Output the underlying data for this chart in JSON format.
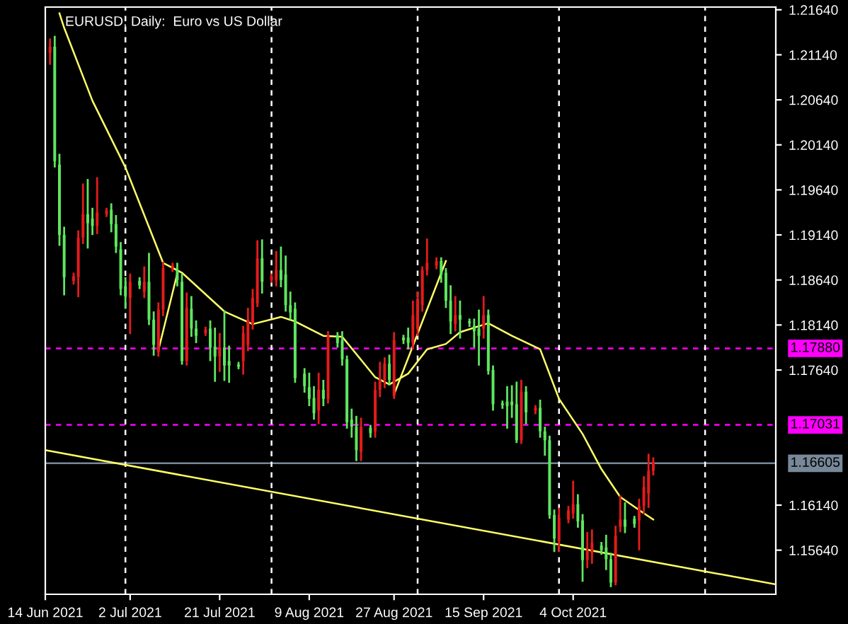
{
  "chart_data": {
    "type": "candlestick",
    "title": "EURUSD, Daily:  Euro vs US Dollar",
    "xlim": [
      "2021-06-14",
      "2021-11-16"
    ],
    "xticks": [
      {
        "value": "2021-06-14",
        "label": "14 Jun 2021"
      },
      {
        "value": "2021-07-02",
        "label": "2 Jul 2021"
      },
      {
        "value": "2021-07-21",
        "label": "21 Jul 2021"
      },
      {
        "value": "2021-08-09",
        "label": "9 Aug 2021"
      },
      {
        "value": "2021-08-27",
        "label": "27 Aug 2021"
      },
      {
        "value": "2021-09-15",
        "label": "15 Sep 2021"
      },
      {
        "value": "2021-10-04",
        "label": "4 Oct 2021"
      }
    ],
    "ylim": [
      1.1515,
      1.2167
    ],
    "yticks": [
      {
        "value": 1.1564,
        "label": "1.15640"
      },
      {
        "value": 1.1614,
        "label": "1.16140"
      },
      {
        "value": 1.1764,
        "label": "1.17640"
      },
      {
        "value": 1.1814,
        "label": "1.18140"
      },
      {
        "value": 1.1864,
        "label": "1.18640"
      },
      {
        "value": 1.1914,
        "label": "1.19140"
      },
      {
        "value": 1.1964,
        "label": "1.19640"
      },
      {
        "value": 1.2014,
        "label": "1.20140"
      },
      {
        "value": 1.2064,
        "label": "1.20640"
      },
      {
        "value": 1.2114,
        "label": "1.21140"
      },
      {
        "value": 1.2164,
        "label": "1.21640"
      }
    ],
    "x": [
      "2021-06-15",
      "2021-06-16",
      "2021-06-17",
      "2021-06-18",
      "2021-06-20",
      "2021-06-21",
      "2021-06-22",
      "2021-06-23",
      "2021-06-24",
      "2021-06-25",
      "2021-06-27",
      "2021-06-28",
      "2021-06-29",
      "2021-06-30",
      "2021-07-01",
      "2021-07-02",
      "2021-07-04",
      "2021-07-05",
      "2021-07-06",
      "2021-07-07",
      "2021-07-08",
      "2021-07-09",
      "2021-07-11",
      "2021-07-12",
      "2021-07-13",
      "2021-07-14",
      "2021-07-15",
      "2021-07-16",
      "2021-07-18",
      "2021-07-19",
      "2021-07-20",
      "2021-07-21",
      "2021-07-22",
      "2021-07-23",
      "2021-07-25",
      "2021-07-26",
      "2021-07-27",
      "2021-07-28",
      "2021-07-29",
      "2021-07-30",
      "2021-08-01",
      "2021-08-02",
      "2021-08-03",
      "2021-08-04",
      "2021-08-05",
      "2021-08-06",
      "2021-08-08",
      "2021-08-09",
      "2021-08-10",
      "2021-08-11",
      "2021-08-12",
      "2021-08-13",
      "2021-08-15",
      "2021-08-16",
      "2021-08-17",
      "2021-08-18",
      "2021-08-19",
      "2021-08-20",
      "2021-08-22",
      "2021-08-23",
      "2021-08-24",
      "2021-08-25",
      "2021-08-26",
      "2021-08-27",
      "2021-08-29",
      "2021-08-30",
      "2021-08-31",
      "2021-09-01",
      "2021-09-02",
      "2021-09-03",
      "2021-09-05",
      "2021-09-06",
      "2021-09-07",
      "2021-09-08",
      "2021-09-09",
      "2021-09-10",
      "2021-09-12",
      "2021-09-13",
      "2021-09-14",
      "2021-09-15",
      "2021-09-16",
      "2021-09-17",
      "2021-09-19",
      "2021-09-20",
      "2021-09-21",
      "2021-09-22",
      "2021-09-23",
      "2021-09-24",
      "2021-09-26",
      "2021-09-27",
      "2021-09-28",
      "2021-09-29",
      "2021-09-30",
      "2021-10-01",
      "2021-10-03",
      "2021-10-04",
      "2021-10-05",
      "2021-10-06",
      "2021-10-07",
      "2021-10-08",
      "2021-10-10",
      "2021-10-11",
      "2021-10-12",
      "2021-10-13",
      "2021-10-14",
      "2021-10-15",
      "2021-10-17",
      "2021-10-18",
      "2021-10-19",
      "2021-10-20",
      "2021-10-21"
    ],
    "ohlc": [
      [
        1.2116,
        1.2131,
        1.2104,
        1.2123
      ],
      [
        1.2123,
        1.2134,
        1.199,
        1.1996
      ],
      [
        1.1992,
        1.2003,
        1.1903,
        1.1914
      ],
      [
        1.1914,
        1.1922,
        1.1848,
        1.1867
      ],
      [
        1.1863,
        1.1871,
        1.186,
        1.1868
      ],
      [
        1.1867,
        1.1918,
        1.1846,
        1.1911
      ],
      [
        1.1911,
        1.197,
        1.1905,
        1.1937
      ],
      [
        1.1937,
        1.1975,
        1.19,
        1.1927
      ],
      [
        1.1932,
        1.1943,
        1.1915,
        1.1924
      ],
      [
        1.1924,
        1.1977,
        1.1916,
        1.1939
      ],
      [
        1.1937,
        1.1943,
        1.1935,
        1.1941
      ],
      [
        1.1942,
        1.1948,
        1.1918,
        1.1926
      ],
      [
        1.1926,
        1.1935,
        1.1895,
        1.1901
      ],
      [
        1.1898,
        1.1905,
        1.1848,
        1.1854
      ],
      [
        1.1857,
        1.1866,
        1.1833,
        1.1846
      ],
      [
        1.1844,
        1.187,
        1.1805,
        1.1862
      ],
      [
        1.1863,
        1.1866,
        1.1855,
        1.1858
      ],
      [
        1.1851,
        1.1878,
        1.1845,
        1.1862
      ],
      [
        1.1862,
        1.1893,
        1.1815,
        1.182
      ],
      [
        1.182,
        1.1828,
        1.1781,
        1.1792
      ],
      [
        1.1784,
        1.1838,
        1.178,
        1.1831
      ],
      [
        1.1831,
        1.1883,
        1.1825,
        1.1877
      ],
      [
        1.1877,
        1.1882,
        1.1874,
        1.188
      ],
      [
        1.1875,
        1.1882,
        1.1858,
        1.1864
      ],
      [
        1.1862,
        1.187,
        1.1771,
        1.1774
      ],
      [
        1.1774,
        1.1849,
        1.177,
        1.1833
      ],
      [
        1.1832,
        1.1845,
        1.1802,
        1.181
      ],
      [
        1.181,
        1.1818,
        1.1795,
        1.1802
      ],
      [
        1.1805,
        1.1811,
        1.1803,
        1.1809
      ],
      [
        1.181,
        1.1818,
        1.1775,
        1.1789
      ],
      [
        1.179,
        1.181,
        1.1752,
        1.1779
      ],
      [
        1.1779,
        1.1804,
        1.1763,
        1.1789
      ],
      [
        1.1789,
        1.1829,
        1.1753,
        1.1769
      ],
      [
        1.1774,
        1.179,
        1.1751,
        1.1769
      ],
      [
        1.177,
        1.1772,
        1.1766,
        1.1768
      ],
      [
        1.1774,
        1.1812,
        1.176,
        1.1805
      ],
      [
        1.1792,
        1.1832,
        1.1786,
        1.182
      ],
      [
        1.1815,
        1.1853,
        1.181,
        1.1844
      ],
      [
        1.1838,
        1.1907,
        1.1835,
        1.1888
      ],
      [
        1.1888,
        1.1908,
        1.185,
        1.1862
      ],
      [
        1.1864,
        1.187,
        1.1862,
        1.1868
      ],
      [
        1.1864,
        1.1895,
        1.1858,
        1.1875
      ],
      [
        1.1875,
        1.19,
        1.1857,
        1.1864
      ],
      [
        1.187,
        1.189,
        1.183,
        1.1836
      ],
      [
        1.1836,
        1.185,
        1.1821,
        1.1828
      ],
      [
        1.1832,
        1.1838,
        1.1751,
        1.1755
      ],
      [
        1.176,
        1.1765,
        1.174,
        1.1746
      ],
      [
        1.1745,
        1.176,
        1.1725,
        1.1732
      ],
      [
        1.1733,
        1.1745,
        1.171,
        1.1716
      ],
      [
        1.1719,
        1.176,
        1.1705,
        1.1742
      ],
      [
        1.1742,
        1.1752,
        1.1725,
        1.1732
      ],
      [
        1.1732,
        1.1806,
        1.1728,
        1.1802
      ],
      [
        1.1802,
        1.1805,
        1.179,
        1.1794
      ],
      [
        1.1797,
        1.1806,
        1.177,
        1.1776
      ],
      [
        1.1776,
        1.1779,
        1.17,
        1.1706
      ],
      [
        1.1709,
        1.172,
        1.169,
        1.1701
      ],
      [
        1.1701,
        1.1712,
        1.1664,
        1.1675
      ],
      [
        1.1673,
        1.171,
        1.1664,
        1.1701
      ],
      [
        1.17,
        1.1702,
        1.169,
        1.1694
      ],
      [
        1.1696,
        1.175,
        1.169,
        1.1742
      ],
      [
        1.1742,
        1.1772,
        1.1735,
        1.1753
      ],
      [
        1.1753,
        1.1777,
        1.1745,
        1.1771
      ],
      [
        1.1771,
        1.178,
        1.1748,
        1.1753
      ],
      [
        1.1735,
        1.1805,
        1.1733,
        1.1797
      ],
      [
        1.18,
        1.1802,
        1.1794,
        1.1797
      ],
      [
        1.18,
        1.181,
        1.1788,
        1.1794
      ],
      [
        1.1794,
        1.184,
        1.1788,
        1.1825
      ],
      [
        1.181,
        1.185,
        1.1803,
        1.1843
      ],
      [
        1.1836,
        1.1878,
        1.183,
        1.1875
      ],
      [
        1.1875,
        1.1909,
        1.187,
        1.1883
      ],
      [
        1.188,
        1.1888,
        1.1877,
        1.1885
      ],
      [
        1.1885,
        1.1888,
        1.1862,
        1.187
      ],
      [
        1.1872,
        1.1876,
        1.1834,
        1.1841
      ],
      [
        1.1841,
        1.1857,
        1.1805,
        1.1818
      ],
      [
        1.1815,
        1.1845,
        1.1808,
        1.1825
      ],
      [
        1.1825,
        1.184,
        1.18,
        1.182
      ],
      [
        1.1818,
        1.182,
        1.1813,
        1.1816
      ],
      [
        1.1813,
        1.182,
        1.179,
        1.1807
      ],
      [
        1.181,
        1.183,
        1.177,
        1.1802
      ],
      [
        1.181,
        1.1845,
        1.18,
        1.1825
      ],
      [
        1.1825,
        1.183,
        1.176,
        1.1763
      ],
      [
        1.1764,
        1.1768,
        1.172,
        1.1726
      ],
      [
        1.1727,
        1.1729,
        1.1722,
        1.1725
      ],
      [
        1.1729,
        1.1745,
        1.17,
        1.1724
      ],
      [
        1.1729,
        1.1746,
        1.1712,
        1.1725
      ],
      [
        1.1726,
        1.175,
        1.1684,
        1.1686
      ],
      [
        1.1686,
        1.1752,
        1.1683,
        1.174
      ],
      [
        1.174,
        1.1745,
        1.1705,
        1.1717
      ],
      [
        1.1719,
        1.1724,
        1.1716,
        1.1722
      ],
      [
        1.1722,
        1.173,
        1.169,
        1.1696
      ],
      [
        1.1696,
        1.17,
        1.167,
        1.1686
      ],
      [
        1.1686,
        1.169,
        1.16,
        1.1603
      ],
      [
        1.1603,
        1.1608,
        1.1563,
        1.1577
      ],
      [
        1.1574,
        1.161,
        1.1563,
        1.16
      ],
      [
        1.1598,
        1.1612,
        1.1595,
        1.1608
      ],
      [
        1.1605,
        1.164,
        1.16,
        1.1615
      ],
      [
        1.1615,
        1.1625,
        1.159,
        1.1596
      ],
      [
        1.1597,
        1.1603,
        1.153,
        1.1553
      ],
      [
        1.1553,
        1.1583,
        1.1545,
        1.1564
      ],
      [
        1.1561,
        1.1586,
        1.155,
        1.1572
      ],
      [
        1.1569,
        1.1572,
        1.156,
        1.1564
      ],
      [
        1.1567,
        1.158,
        1.1543,
        1.1554
      ],
      [
        1.1554,
        1.156,
        1.1524,
        1.1528
      ],
      [
        1.1528,
        1.159,
        1.1526,
        1.158
      ],
      [
        1.159,
        1.1624,
        1.1585,
        1.1598
      ],
      [
        1.1598,
        1.1616,
        1.1584,
        1.159
      ],
      [
        1.1599,
        1.1601,
        1.159,
        1.1593
      ],
      [
        1.1597,
        1.162,
        1.1565,
        1.1613
      ],
      [
        1.1613,
        1.1645,
        1.1605,
        1.1634
      ],
      [
        1.1627,
        1.167,
        1.1612,
        1.1652
      ],
      [
        1.1652,
        1.1666,
        1.1648,
        1.1662
      ]
    ],
    "colors": [
      "#e41b1b",
      "#5ee65e",
      "#5ee65e",
      "#5ee65e",
      "#e41b1b",
      "#e41b1b",
      "#e41b1b",
      "#5ee65e",
      "#5ee65e",
      "#e41b1b",
      "#e41b1b",
      "#5ee65e",
      "#5ee65e",
      "#5ee65e",
      "#5ee65e",
      "#e41b1b",
      "#5ee65e",
      "#e41b1b",
      "#5ee65e",
      "#5ee65e",
      "#e41b1b",
      "#e41b1b",
      "#e41b1b",
      "#5ee65e",
      "#5ee65e",
      "#e41b1b",
      "#5ee65e",
      "#5ee65e",
      "#e41b1b",
      "#5ee65e",
      "#5ee65e",
      "#e41b1b",
      "#5ee65e",
      "#5ee65e",
      "#5ee65e",
      "#e41b1b",
      "#e41b1b",
      "#e41b1b",
      "#e41b1b",
      "#5ee65e",
      "#e41b1b",
      "#e41b1b",
      "#5ee65e",
      "#5ee65e",
      "#5ee65e",
      "#5ee65e",
      "#5ee65e",
      "#5ee65e",
      "#5ee65e",
      "#e41b1b",
      "#5ee65e",
      "#e41b1b",
      "#5ee65e",
      "#5ee65e",
      "#5ee65e",
      "#5ee65e",
      "#5ee65e",
      "#e41b1b",
      "#5ee65e",
      "#e41b1b",
      "#e41b1b",
      "#e41b1b",
      "#5ee65e",
      "#e41b1b",
      "#5ee65e",
      "#5ee65e",
      "#e41b1b",
      "#e41b1b",
      "#e41b1b",
      "#e41b1b",
      "#e41b1b",
      "#5ee65e",
      "#5ee65e",
      "#5ee65e",
      "#e41b1b",
      "#5ee65e",
      "#5ee65e",
      "#5ee65e",
      "#5ee65e",
      "#e41b1b",
      "#5ee65e",
      "#5ee65e",
      "#5ee65e",
      "#5ee65e",
      "#5ee65e",
      "#5ee65e",
      "#e41b1b",
      "#5ee65e",
      "#e41b1b",
      "#5ee65e",
      "#5ee65e",
      "#5ee65e",
      "#5ee65e",
      "#e41b1b",
      "#e41b1b",
      "#e41b1b",
      "#5ee65e",
      "#5ee65e",
      "#e41b1b",
      "#e41b1b",
      "#5ee65e",
      "#5ee65e",
      "#5ee65e",
      "#e41b1b",
      "#e41b1b",
      "#5ee65e",
      "#5ee65e",
      "#e41b1b",
      "#e41b1b",
      "#e41b1b",
      "#e41b1b"
    ],
    "series": [
      {
        "type": "line",
        "color": "#ffff66",
        "x": [
          "2021-06-17",
          "2021-06-18",
          "2021-06-24",
          "2021-07-01",
          "2021-07-09",
          "2021-07-13",
          "2021-07-22",
          "2021-07-28",
          "2021-08-03",
          "2021-08-06",
          "2021-08-12",
          "2021-08-16",
          "2021-08-23",
          "2021-08-26",
          "2021-08-30",
          "2021-09-03",
          "2021-09-07",
          "2021-09-10",
          "2021-09-16",
          "2021-09-21",
          "2021-09-27",
          "2021-10-01",
          "2021-10-06",
          "2021-10-10",
          "2021-10-14",
          "2021-10-19",
          "2021-10-21"
        ],
        "values": [
          1.216,
          1.2144,
          1.2063,
          1.1989,
          1.1883,
          1.1872,
          1.1829,
          1.1815,
          1.1823,
          1.1818,
          1.1802,
          1.1801,
          1.1756,
          1.1748,
          1.176,
          1.1787,
          1.1793,
          1.1806,
          1.1816,
          1.1802,
          1.1787,
          1.1732,
          1.1693,
          1.1654,
          1.1623,
          1.1605,
          1.1598
        ]
      },
      {
        "type": "line",
        "color": "#ffff66",
        "x": [
          "2021-07-08",
          "2021-07-12",
          "2021-07-13",
          "2021-08-27",
          "2021-09-07"
        ],
        "values": [
          1.1786,
          1.1871,
          null,
          1.1737,
          1.1885
        ]
      },
      {
        "type": "line",
        "color": "#ffff66",
        "x": [
          "2021-06-14",
          "2021-11-16"
        ],
        "values": [
          1.1675,
          1.1526
        ]
      }
    ],
    "ref_lines": [
      {
        "axis": "y",
        "value": 1.1788,
        "label": "1.17880",
        "color": "#ff00ff",
        "line_style": "dashed"
      },
      {
        "axis": "y",
        "value": 1.17031,
        "label": "1.17031",
        "color": "#ff00ff",
        "line_style": "dashed"
      },
      {
        "axis": "y",
        "value": 1.16605,
        "label": "1.16605",
        "color": "#778899",
        "line_style": "solid"
      },
      {
        "axis": "x",
        "value": "2021-07-01",
        "label": null,
        "color": "#ffffff",
        "line_style": "dashed"
      },
      {
        "axis": "x",
        "value": "2021-08-01",
        "label": null,
        "color": "#ffffff",
        "line_style": "dashed"
      },
      {
        "axis": "x",
        "value": "2021-09-01",
        "label": null,
        "color": "#ffffff",
        "line_style": "dashed"
      },
      {
        "axis": "x",
        "value": "2021-10-01",
        "label": null,
        "color": "#ffffff",
        "line_style": "dashed"
      },
      {
        "axis": "x",
        "value": "2021-11-01",
        "label": null,
        "color": "#ffffff",
        "line_style": "dashed"
      }
    ]
  }
}
